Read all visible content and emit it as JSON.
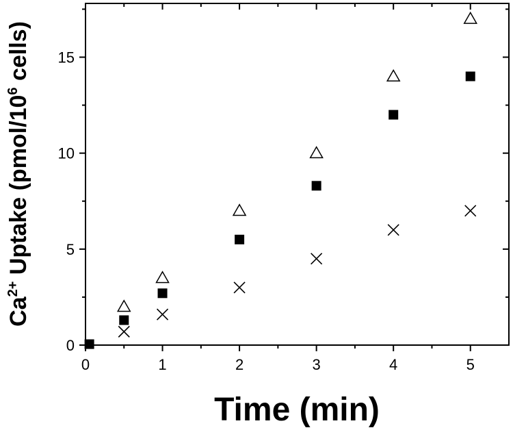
{
  "chart_data": {
    "type": "scatter",
    "title": "",
    "xlabel": "Time (min)",
    "ylabel": {
      "parts": [
        "Ca",
        "2+",
        " Uptake (pmol/10",
        "6",
        " cells)"
      ],
      "full": "Ca2+ Uptake (pmol/10^6 cells)"
    },
    "xlim": [
      0,
      5.5
    ],
    "ylim": [
      0,
      17.8
    ],
    "xticks": [
      0,
      1,
      2,
      3,
      4,
      5
    ],
    "yticks": [
      0,
      5,
      10,
      15
    ],
    "xtick_labels": [
      "0",
      "1",
      "2",
      "3",
      "4",
      "5"
    ],
    "ytick_labels": [
      "0",
      "5",
      "10",
      "15"
    ],
    "grid": false,
    "legend": "none",
    "series": [
      {
        "marker": "open-triangle",
        "color": "#000000",
        "points": [
          [
            0.5,
            2.0
          ],
          [
            1,
            3.5
          ],
          [
            2,
            7.0
          ],
          [
            3,
            10.0
          ],
          [
            4,
            14.0
          ],
          [
            5,
            17.0
          ]
        ]
      },
      {
        "marker": "filled-square",
        "color": "#000000",
        "points": [
          [
            0.05,
            0.05
          ],
          [
            0.5,
            1.3
          ],
          [
            1,
            2.7
          ],
          [
            2,
            5.5
          ],
          [
            3,
            8.3
          ],
          [
            4,
            12.0
          ],
          [
            5,
            14.0
          ]
        ]
      },
      {
        "marker": "x-cross",
        "color": "#000000",
        "points": [
          [
            0.5,
            0.7
          ],
          [
            1,
            1.6
          ],
          [
            2,
            3.0
          ],
          [
            3,
            4.5
          ],
          [
            4,
            6.0
          ],
          [
            5,
            7.0
          ]
        ]
      }
    ]
  }
}
